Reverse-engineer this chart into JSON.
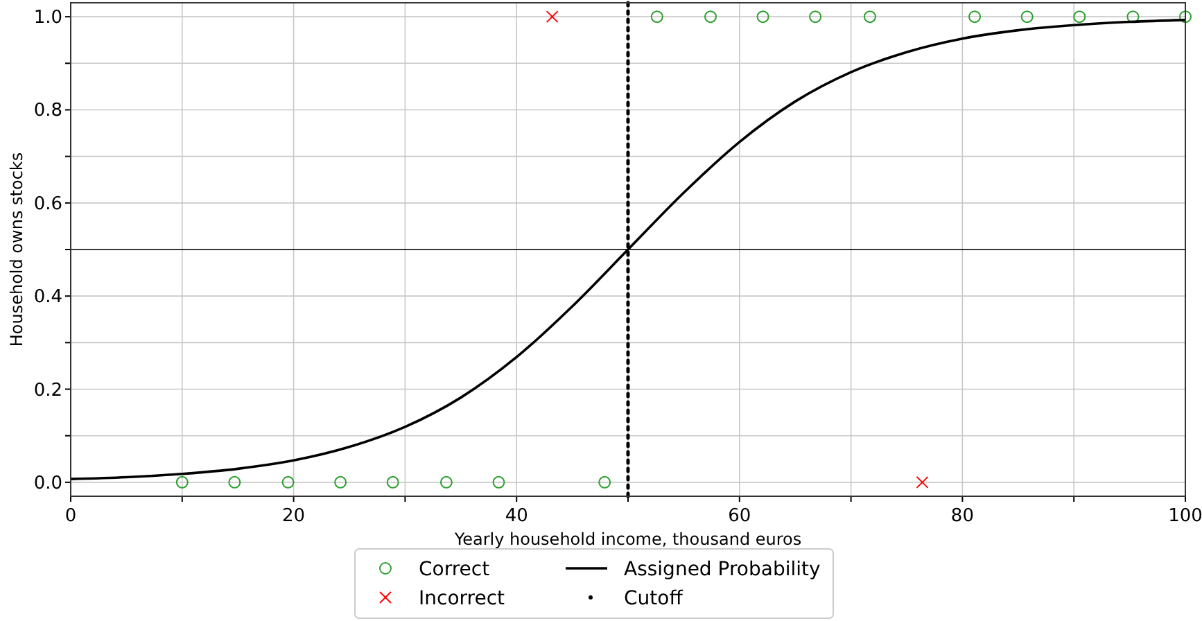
{
  "chart_data": {
    "type": "scatter",
    "xlabel": "Yearly household income, thousand euros",
    "ylabel": "Household owns stocks",
    "xlim": [
      0,
      100
    ],
    "ylim": [
      -0.03,
      1.03
    ],
    "xticks": [
      0,
      {
        "value": 10,
        "label": null
      },
      20,
      {
        "value": 30,
        "label": null
      },
      40,
      {
        "value": 50,
        "label": null
      },
      60,
      {
        "value": 70,
        "label": null
      },
      80,
      {
        "value": 90,
        "label": null
      },
      100
    ],
    "yticks": [
      {
        "value": 0,
        "label": "0.0"
      },
      {
        "value": 0.1,
        "label": null
      },
      {
        "value": 0.2,
        "label": "0.2"
      },
      {
        "value": 0.3,
        "label": null
      },
      {
        "value": 0.4,
        "label": "0.4"
      },
      {
        "value": 0.5,
        "label": null
      },
      {
        "value": 0.6,
        "label": "0.6"
      },
      {
        "value": 0.7,
        "label": null
      },
      {
        "value": 0.8,
        "label": "0.8"
      },
      {
        "value": 0.9,
        "label": null
      },
      {
        "value": 1,
        "label": "1.0"
      }
    ],
    "grid": true,
    "legend": "bottom",
    "ref_lines": [
      {
        "axis": "y",
        "value": 0.5,
        "color": "#000000"
      }
    ],
    "series": [
      {
        "name": "Correct",
        "type": "scatter",
        "marker": "circle",
        "color": "#2ca02c",
        "x": [
          10.0,
          14.7,
          19.5,
          24.2,
          28.9,
          33.7,
          38.4,
          47.9,
          52.6,
          57.4,
          62.1,
          66.8,
          71.7,
          81.1,
          85.8,
          90.5,
          95.3,
          100
        ],
        "values": [
          0,
          0,
          0,
          0,
          0,
          0,
          0,
          0,
          1,
          1,
          1,
          1,
          1,
          1,
          1,
          1,
          1,
          1
        ]
      },
      {
        "name": "Incorrect",
        "type": "scatter",
        "marker": "cross",
        "color": "#ff0000",
        "x": [
          43.2,
          76.4
        ],
        "values": [
          1,
          0
        ]
      },
      {
        "name": "Assigned Probability",
        "type": "line",
        "marker": "none",
        "line_style": "solid",
        "color": "#000000",
        "x": [
          0,
          5,
          10,
          15,
          20,
          25,
          30,
          35,
          40,
          45,
          50,
          55,
          60,
          65,
          70,
          75,
          80,
          85,
          90,
          95,
          100
        ],
        "values": [
          0.007,
          0.011,
          0.018,
          0.029,
          0.047,
          0.076,
          0.119,
          0.182,
          0.269,
          0.378,
          0.5,
          0.622,
          0.731,
          0.818,
          0.881,
          0.924,
          0.953,
          0.971,
          0.982,
          0.989,
          0.993
        ]
      },
      {
        "name": "Cutoff",
        "type": "line",
        "marker": "none",
        "line_style": "dotted",
        "color": "#000000",
        "x": [
          50,
          50
        ],
        "values": [
          -0.03,
          1.03
        ]
      }
    ]
  }
}
